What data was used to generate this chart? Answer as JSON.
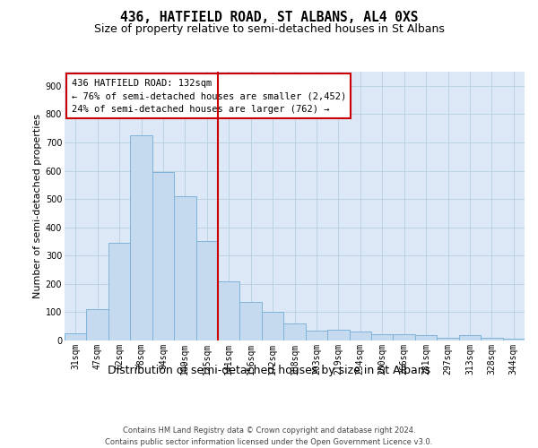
{
  "title": "436, HATFIELD ROAD, ST ALBANS, AL4 0XS",
  "subtitle": "Size of property relative to semi-detached houses in St Albans",
  "xlabel": "Distribution of semi-detached houses by size in St Albans",
  "ylabel": "Number of semi-detached properties",
  "footer_line1": "Contains HM Land Registry data © Crown copyright and database right 2024.",
  "footer_line2": "Contains public sector information licensed under the Open Government Licence v3.0.",
  "categories": [
    "31sqm",
    "47sqm",
    "62sqm",
    "78sqm",
    "94sqm",
    "109sqm",
    "125sqm",
    "141sqm",
    "156sqm",
    "172sqm",
    "188sqm",
    "203sqm",
    "219sqm",
    "234sqm",
    "250sqm",
    "266sqm",
    "281sqm",
    "297sqm",
    "313sqm",
    "328sqm",
    "344sqm"
  ],
  "values": [
    25,
    110,
    345,
    725,
    595,
    510,
    350,
    210,
    135,
    100,
    60,
    35,
    38,
    32,
    22,
    22,
    20,
    11,
    20,
    10,
    5
  ],
  "bar_color": "#c5d9ef",
  "bar_edge_color": "#7fb3d9",
  "vline_color": "#cc0000",
  "vline_index": 7,
  "annotation_line1": "436 HATFIELD ROAD: 132sqm",
  "annotation_line2": "← 76% of semi-detached houses are smaller (2,452)",
  "annotation_line3": "24% of semi-detached houses are larger (762) →",
  "annotation_box_color": "#ffffff",
  "annotation_edge_color": "#cc0000",
  "ylim": [
    0,
    950
  ],
  "yticks": [
    0,
    100,
    200,
    300,
    400,
    500,
    600,
    700,
    800,
    900
  ],
  "plot_bg_color": "#dce8f5",
  "background_color": "#ffffff",
  "grid_color": "#b8cfe0",
  "title_fontsize": 10.5,
  "subtitle_fontsize": 9,
  "ylabel_fontsize": 8,
  "xlabel_fontsize": 9,
  "tick_fontsize": 7,
  "footer_fontsize": 6,
  "annot_fontsize": 7.5
}
